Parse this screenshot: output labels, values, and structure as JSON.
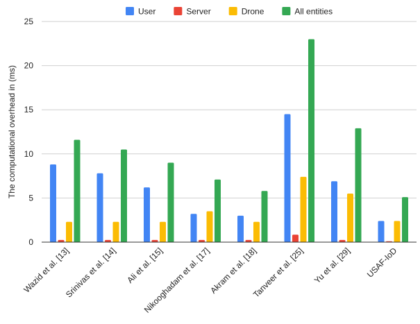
{
  "chart_data": {
    "type": "bar",
    "title": "",
    "xlabel": "",
    "ylabel": "The computational overhead in (ms)",
    "ylim": [
      0,
      25
    ],
    "yticks": [
      0,
      5,
      10,
      15,
      20,
      25
    ],
    "grid": "horizontal",
    "legend_position": "top",
    "categories": [
      "Wazid et al. [13]",
      "Srinivas et al. [14]",
      "Ali et al. [15]",
      "Nikooghadam et al. [17]",
      "Akram et al. [18]",
      "Tanveer et al. [25]",
      "Yu et al. [29]",
      "USAF-IoD"
    ],
    "series": [
      {
        "name": "User",
        "color": "#4285F4",
        "values": [
          8.8,
          7.8,
          6.2,
          3.2,
          3.0,
          14.5,
          6.9,
          2.4
        ]
      },
      {
        "name": "Server",
        "color": "#EA4335",
        "values": [
          0.25,
          0.25,
          0.25,
          0.25,
          0.25,
          0.85,
          0.25,
          0.1
        ]
      },
      {
        "name": "Drone",
        "color": "#FBBC04",
        "values": [
          2.3,
          2.3,
          2.3,
          3.5,
          2.3,
          7.4,
          5.5,
          2.4
        ]
      },
      {
        "name": "All entities",
        "color": "#34A853",
        "values": [
          11.6,
          10.5,
          9.0,
          7.1,
          5.8,
          23.0,
          12.9,
          5.1
        ]
      }
    ]
  }
}
